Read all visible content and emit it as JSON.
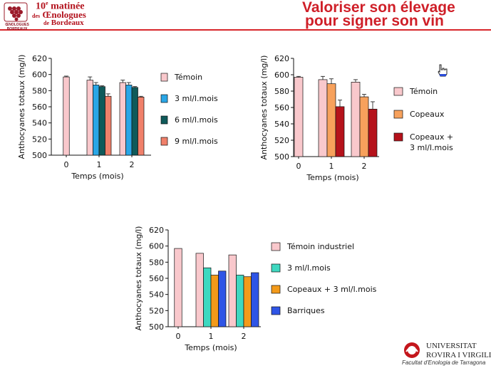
{
  "header": {
    "logo_caption": "ŒNOLOGUES BORDEAUX",
    "matinee_num": "10",
    "matinee_sup": "e",
    "matinee_word": "matinée",
    "matinee_des": "des",
    "matinee_oenologues": "Œnologues",
    "matinee_de": "de",
    "matinee_bordeaux": "Bordeaux",
    "title_line1": "Valoriser son élevage",
    "title_line2": "pour signer son vin"
  },
  "footer": {
    "univ_name1": "UNIVERSITAT",
    "univ_name2": "ROVIRA I VIRGILI",
    "faculty": "Facultat d'Enologia de Tarragona"
  },
  "chart_data": [
    {
      "type": "bar",
      "categories": [
        "0",
        "1",
        "2"
      ],
      "xlabel": "Temps (mois)",
      "ylabel": "Anthocyanes totaux (mg/l)",
      "ylim": [
        500,
        620
      ],
      "yticks": [
        500,
        520,
        540,
        560,
        580,
        600,
        620
      ],
      "series": [
        {
          "name": "Témoin",
          "color": "#f9c8cc",
          "values": [
            597,
            593,
            590
          ],
          "errors": [
            1,
            4,
            3
          ]
        },
        {
          "name": "3 ml/l.mois",
          "color": "#2aa6e6",
          "values": [
            null,
            587,
            587
          ],
          "errors": [
            0,
            3,
            3
          ]
        },
        {
          "name": "6 ml/l.mois",
          "color": "#0f5a5a",
          "values": [
            null,
            585,
            584
          ],
          "errors": [
            0,
            1,
            1
          ]
        },
        {
          "name": "9 ml/l.mois",
          "color": "#f0806a",
          "values": [
            null,
            573,
            572
          ],
          "errors": [
            0,
            3,
            1
          ]
        }
      ]
    },
    {
      "type": "bar",
      "categories": [
        "0",
        "1",
        "2"
      ],
      "xlabel": "Temps (mois)",
      "ylabel": "Anthocyanes totaux (mg/l)",
      "ylim": [
        500,
        620
      ],
      "yticks": [
        500,
        520,
        540,
        560,
        580,
        600,
        620
      ],
      "series": [
        {
          "name": "Témoin",
          "color": "#f9c8cc",
          "values": [
            597,
            594,
            591
          ],
          "errors": [
            1,
            4,
            3
          ]
        },
        {
          "name": "Copeaux",
          "color": "#f7a15c",
          "values": [
            null,
            589,
            573
          ],
          "errors": [
            0,
            6,
            3
          ]
        },
        {
          "name": "Copeaux +\n3 ml/l.mois",
          "color": "#b5121b",
          "values": [
            null,
            561,
            558
          ],
          "errors": [
            0,
            8,
            9
          ]
        }
      ]
    },
    {
      "type": "bar",
      "categories": [
        "0",
        "1",
        "2"
      ],
      "xlabel": "Temps (mois)",
      "ylabel": "Anthocyanes totaux (mg/l)",
      "ylim": [
        500,
        620
      ],
      "yticks": [
        500,
        520,
        540,
        560,
        580,
        600,
        620
      ],
      "series": [
        {
          "name": "Témoin industriel",
          "color": "#f9c8cc",
          "values": [
            597,
            591,
            589
          ],
          "errors": [
            0,
            0,
            0
          ]
        },
        {
          "name": "3 ml/l.mois",
          "color": "#3fd8c0",
          "values": [
            null,
            573,
            564
          ],
          "errors": [
            0,
            0,
            0
          ]
        },
        {
          "name": "Copeaux + 3 ml/l.mois",
          "color": "#f39a1a",
          "values": [
            null,
            564,
            562
          ],
          "errors": [
            0,
            0,
            0
          ]
        },
        {
          "name": "Barriques",
          "color": "#2f55e6",
          "values": [
            null,
            569,
            567
          ],
          "errors": [
            0,
            0,
            0
          ]
        }
      ]
    }
  ]
}
